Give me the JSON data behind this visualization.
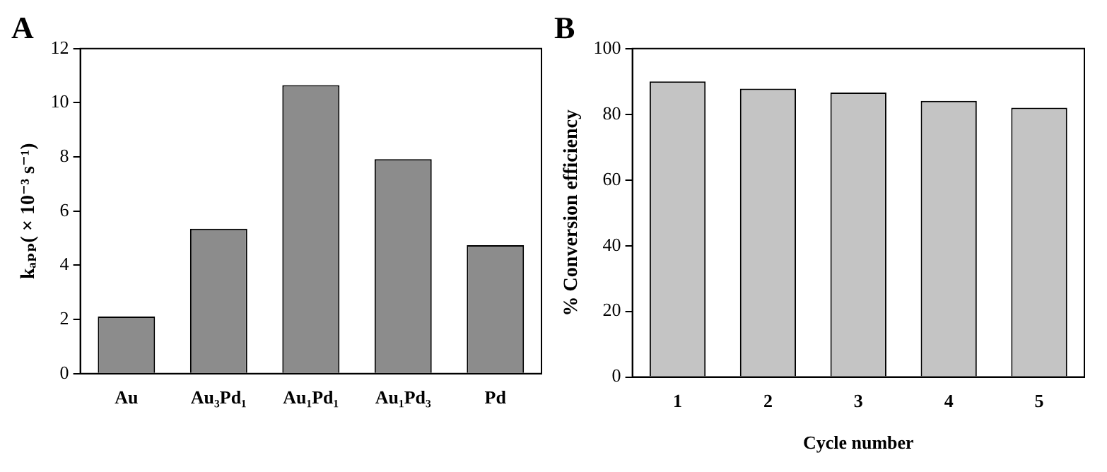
{
  "chart_data": [
    {
      "type": "bar",
      "title": "A",
      "ylabel": "kₐₚₚ( × 10⁻³ s⁻¹)",
      "categories": [
        "Au",
        "Au₃Pd₁",
        "Au₁Pd₁",
        "Au₁Pd₃",
        "Pd"
      ],
      "values": [
        2.11,
        5.35,
        10.65,
        7.92,
        4.74
      ],
      "color": "#8c8c8c",
      "ylim": [
        0,
        12
      ],
      "yticks": [
        0,
        2,
        4,
        6,
        8,
        10,
        12
      ],
      "grid": false,
      "legend": false
    },
    {
      "type": "bar",
      "title": "B",
      "xlabel": "Cycle number",
      "ylabel": "% Conversion efficiency",
      "categories": [
        "1",
        "2",
        "3",
        "4",
        "5"
      ],
      "values": [
        90.0,
        87.8,
        86.6,
        84.1,
        82.0
      ],
      "color": "#c4c4c4",
      "ylim": [
        0,
        100
      ],
      "yticks": [
        0,
        20,
        40,
        60,
        80,
        100
      ],
      "grid": false,
      "legend": false
    }
  ]
}
